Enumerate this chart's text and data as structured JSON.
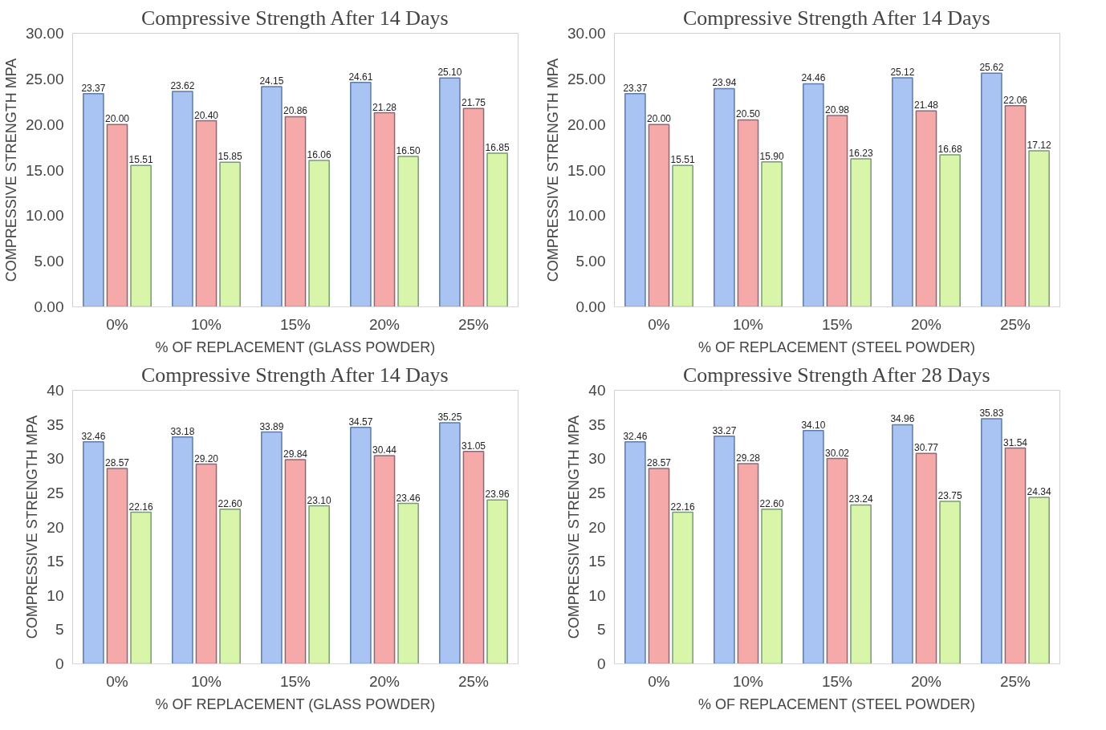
{
  "chart_data": [
    {
      "type": "bar",
      "title": "Compressive Strength After 14 Days",
      "xlabel": "% OF REPLACEMENT (GLASS POWDER)",
      "ylabel": "COMPRESSIVE STRENGTH MPA",
      "categories": [
        "0%",
        "10%",
        "15%",
        "20%",
        "25%"
      ],
      "ylim": [
        0,
        30
      ],
      "yticks": [
        {
          "value": 0,
          "label": "0.00"
        },
        {
          "value": 5,
          "label": "5.00"
        },
        {
          "value": 10,
          "label": "10.00"
        },
        {
          "value": 15,
          "label": "15.00"
        },
        {
          "value": 20,
          "label": "20.00"
        },
        {
          "value": 25,
          "label": "25.00"
        },
        {
          "value": 30,
          "label": "30.00"
        }
      ],
      "grid": false,
      "series": [
        {
          "color": "#a9c4f2",
          "values": [
            23.37,
            23.62,
            24.15,
            24.61,
            25.1
          ],
          "value_labels": [
            "23.37",
            "23.62",
            "24.15",
            "24.61",
            "25.10"
          ]
        },
        {
          "color": "#f5a9a9",
          "values": [
            20.0,
            20.4,
            20.86,
            21.28,
            21.75
          ],
          "value_labels": [
            "20.00",
            "20.40",
            "20.86",
            "21.28",
            "21.75"
          ]
        },
        {
          "color": "#d9f5aa",
          "values": [
            15.51,
            15.85,
            16.06,
            16.5,
            16.85
          ],
          "value_labels": [
            "15.51",
            "15.85",
            "16.06",
            "16.50",
            "16.85"
          ]
        }
      ]
    },
    {
      "type": "bar",
      "title": "Compressive Strength After 14 Days",
      "xlabel": "% OF REPLACEMENT (STEEL POWDER)",
      "ylabel": "COMPRESSIVE STRENGTH MPA",
      "categories": [
        "0%",
        "10%",
        "15%",
        "20%",
        "25%"
      ],
      "ylim": [
        0,
        30
      ],
      "yticks": [
        {
          "value": 0,
          "label": "0.00"
        },
        {
          "value": 5,
          "label": "5.00"
        },
        {
          "value": 10,
          "label": "10.00"
        },
        {
          "value": 15,
          "label": "15.00"
        },
        {
          "value": 20,
          "label": "20.00"
        },
        {
          "value": 25,
          "label": "25.00"
        },
        {
          "value": 30,
          "label": "30.00"
        }
      ],
      "grid": false,
      "series": [
        {
          "color": "#a9c4f2",
          "values": [
            23.37,
            23.94,
            24.46,
            25.12,
            25.62
          ],
          "value_labels": [
            "23.37",
            "23.94",
            "24.46",
            "25.12",
            "25.62"
          ]
        },
        {
          "color": "#f5a9a9",
          "values": [
            20.0,
            20.5,
            20.98,
            21.48,
            22.06
          ],
          "value_labels": [
            "20.00",
            "20.50",
            "20.98",
            "21.48",
            "22.06"
          ]
        },
        {
          "color": "#d9f5aa",
          "values": [
            15.51,
            15.9,
            16.23,
            16.68,
            17.12
          ],
          "value_labels": [
            "15.51",
            "15.90",
            "16.23",
            "16.68",
            "17.12"
          ]
        }
      ]
    },
    {
      "type": "bar",
      "title": "Compressive Strength After 14 Days",
      "xlabel": "% OF REPLACEMENT (GLASS POWDER)",
      "ylabel": "COMPRESSIVE STRENGTH MPA",
      "categories": [
        "0%",
        "10%",
        "15%",
        "20%",
        "25%"
      ],
      "ylim": [
        0,
        40
      ],
      "yticks": [
        0,
        5,
        10,
        15,
        20,
        25,
        30,
        35,
        40
      ],
      "grid": false,
      "series": [
        {
          "color": "#a9c4f2",
          "values": [
            32.46,
            33.18,
            33.89,
            34.57,
            35.25
          ],
          "value_labels": [
            "32.46",
            "33.18",
            "33.89",
            "34.57",
            "35.25"
          ]
        },
        {
          "color": "#f5a9a9",
          "values": [
            28.57,
            29.2,
            29.84,
            30.44,
            31.05
          ],
          "value_labels": [
            "28.57",
            "29.20",
            "29.84",
            "30.44",
            "31.05"
          ]
        },
        {
          "color": "#d9f5aa",
          "values": [
            22.16,
            22.6,
            23.1,
            23.46,
            23.96
          ],
          "value_labels": [
            "22.16",
            "22.60",
            "23.10",
            "23.46",
            "23.96"
          ]
        }
      ]
    },
    {
      "type": "bar",
      "title": "Compressive Strength After 28 Days",
      "xlabel": "% OF REPLACEMENT (STEEL POWDER)",
      "ylabel": "COMPRESSIVE STRENGTH MPA",
      "categories": [
        "0%",
        "10%",
        "15%",
        "20%",
        "25%"
      ],
      "ylim": [
        0,
        40
      ],
      "yticks": [
        0,
        5,
        10,
        15,
        20,
        25,
        30,
        35,
        40
      ],
      "grid": false,
      "series": [
        {
          "color": "#a9c4f2",
          "values": [
            32.46,
            33.27,
            34.1,
            34.96,
            35.83
          ],
          "value_labels": [
            "32.46",
            "33.27",
            "34.10",
            "34.96",
            "35.83"
          ]
        },
        {
          "color": "#f5a9a9",
          "values": [
            28.57,
            29.28,
            30.02,
            30.77,
            31.54
          ],
          "value_labels": [
            "28.57",
            "29.28",
            "30.02",
            "30.77",
            "31.54"
          ]
        },
        {
          "color": "#d9f5aa",
          "values": [
            22.16,
            22.6,
            23.24,
            23.75,
            24.34
          ],
          "value_labels": [
            "22.16",
            "22.60",
            "23.24",
            "23.75",
            "24.34"
          ]
        }
      ]
    }
  ]
}
